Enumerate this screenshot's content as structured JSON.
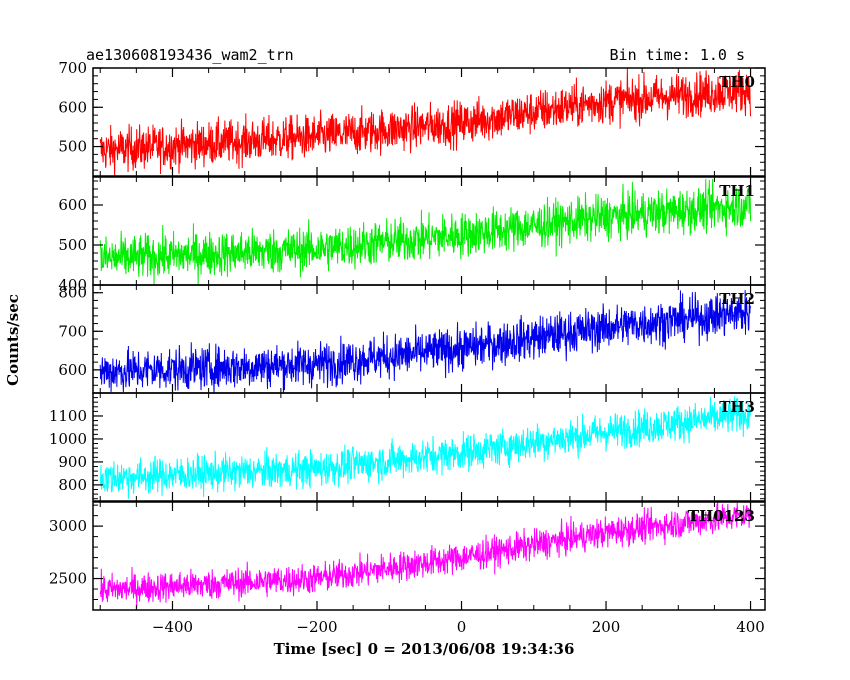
{
  "header": {
    "title": "ae130608193436_wam2_trn",
    "bin_time": "Bin time: 1.0 s"
  },
  "chart_data": {
    "type": "line",
    "xlabel": "Time [sec] 0 = 2013/06/08 19:34:36",
    "ylabel": "Counts/sec",
    "xlim": [
      -510,
      420
    ],
    "x_ticks": [
      -400,
      -200,
      0,
      200,
      400
    ],
    "x_tick_labels": [
      "−400",
      "−200",
      "0",
      "200",
      "400"
    ],
    "panels": [
      {
        "name": "TH0",
        "color": "#ff0000",
        "ylim": [
          425,
          700
        ],
        "y_ticks": [
          500,
          600,
          700
        ],
        "x_range": [
          -500,
          400
        ],
        "trend": [
          [
            -500,
            490
          ],
          [
            -200,
            525
          ],
          [
            0,
            560
          ],
          [
            200,
            615
          ],
          [
            400,
            645
          ]
        ],
        "scatter": 50
      },
      {
        "name": "TH1",
        "color": "#00ee00",
        "ylim": [
          400,
          670
        ],
        "y_ticks": [
          400,
          500,
          600
        ],
        "x_range": [
          -500,
          400
        ],
        "trend": [
          [
            -500,
            465
          ],
          [
            -200,
            490
          ],
          [
            0,
            525
          ],
          [
            200,
            570
          ],
          [
            400,
            600
          ]
        ],
        "scatter": 50
      },
      {
        "name": "TH2",
        "color": "#0000ee",
        "ylim": [
          540,
          820
        ],
        "y_ticks": [
          600,
          700,
          800
        ],
        "x_range": [
          -500,
          400
        ],
        "trend": [
          [
            -500,
            595
          ],
          [
            -200,
            615
          ],
          [
            0,
            655
          ],
          [
            200,
            710
          ],
          [
            400,
            750
          ]
        ],
        "scatter": 50
      },
      {
        "name": "TH3",
        "color": "#00ffff",
        "ylim": [
          730,
          1200
        ],
        "y_ticks": [
          800,
          900,
          1000,
          1100
        ],
        "x_range": [
          -500,
          400
        ],
        "trend": [
          [
            -500,
            830
          ],
          [
            -200,
            870
          ],
          [
            0,
            940
          ],
          [
            200,
            1030
          ],
          [
            400,
            1110
          ]
        ],
        "scatter": 70
      },
      {
        "name": "TH0123",
        "color": "#ff00ff",
        "ylim": [
          2200,
          3230
        ],
        "y_ticks": [
          2500,
          3000
        ],
        "x_range": [
          -500,
          400
        ],
        "trend": [
          [
            -500,
            2390
          ],
          [
            -200,
            2500
          ],
          [
            0,
            2700
          ],
          [
            200,
            2940
          ],
          [
            400,
            3110
          ]
        ],
        "scatter": 130
      }
    ]
  }
}
